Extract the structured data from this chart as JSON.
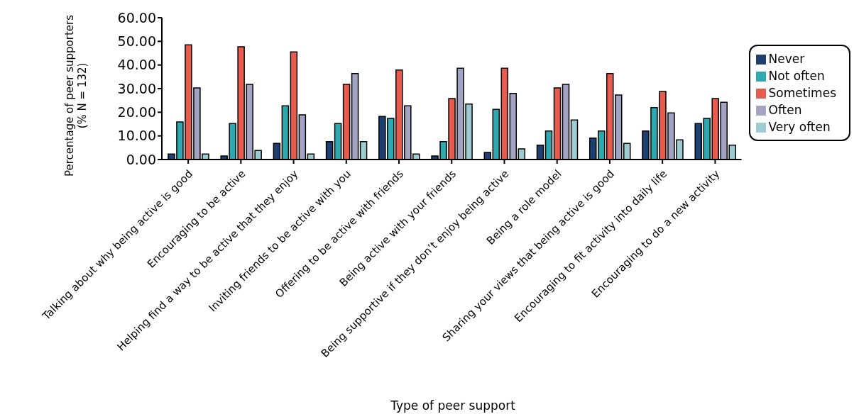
{
  "chart_data": {
    "type": "bar",
    "xlabel": "Type of peer support",
    "ylabel": "Percentage of peer supporters\n(% N = 132)",
    "categories": [
      "Talking about why being active is good",
      "Encouraging to be active",
      "Helping find a way to be active that they enjoy",
      "Inviting friends to be active with you",
      "Offering to be active with friends",
      "Being active with your friends",
      "Being supportive if they don’t enjoy being active",
      "Being a role model",
      "Sharing your views that being active is good",
      "Encouraging to fit activity into daily life",
      "Encouraging to do a new activity"
    ],
    "series": [
      {
        "name": "Never",
        "color": "#1d3f72",
        "values": [
          2.3,
          1.5,
          6.8,
          7.6,
          18.2,
          1.5,
          3.0,
          6.1,
          9.1,
          12.1,
          15.2
        ]
      },
      {
        "name": "Not often",
        "color": "#2ea9b0",
        "values": [
          15.9,
          15.2,
          22.7,
          15.2,
          17.4,
          7.6,
          21.2,
          12.1,
          12.1,
          22.0,
          17.4
        ]
      },
      {
        "name": "Sometimes",
        "color": "#e85c4f",
        "values": [
          48.5,
          47.7,
          45.5,
          31.8,
          37.9,
          25.8,
          38.6,
          30.3,
          36.4,
          28.8,
          25.8
        ]
      },
      {
        "name": "Often",
        "color": "#a3a3c3",
        "values": [
          30.3,
          31.8,
          18.9,
          36.4,
          22.7,
          38.6,
          28.0,
          31.8,
          27.3,
          19.7,
          24.2
        ]
      },
      {
        "name": "Very often",
        "color": "#9ecdd1",
        "values": [
          2.3,
          3.8,
          2.3,
          7.6,
          2.3,
          23.5,
          4.5,
          16.7,
          6.8,
          8.3,
          6.1
        ]
      }
    ],
    "ylim": [
      0,
      60
    ],
    "yticks": [
      {
        "value": 0,
        "label": "0.00"
      },
      {
        "value": 10,
        "label": "10.00"
      },
      {
        "value": 20,
        "label": "20.00"
      },
      {
        "value": 30,
        "label": "30.00"
      },
      {
        "value": 40,
        "label": "40.00"
      },
      {
        "value": 50,
        "label": "50.00"
      },
      {
        "value": 60,
        "label": "60.00"
      }
    ],
    "grid": false,
    "legend": "right"
  }
}
